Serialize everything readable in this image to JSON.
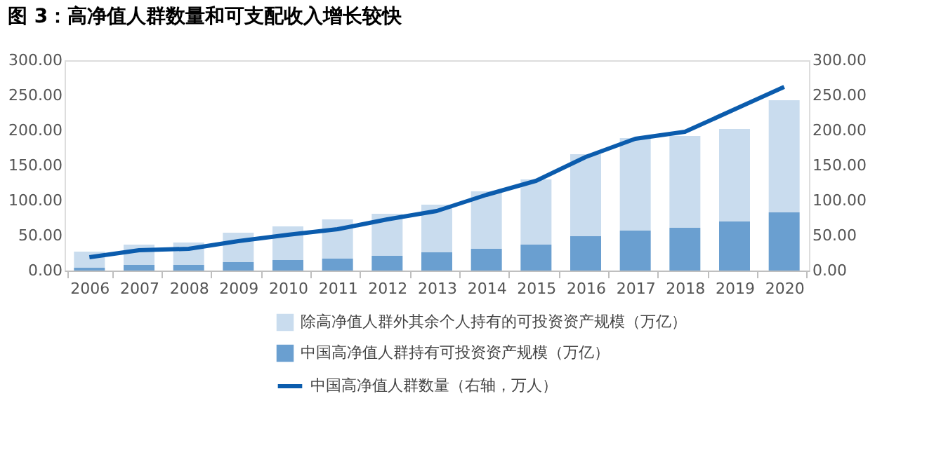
{
  "chart_data": {
    "type": "bar",
    "stacked": true,
    "title": "图 3：高净值人群数量和可支配收入增长较快",
    "categories": [
      "2006",
      "2007",
      "2008",
      "2009",
      "2010",
      "2011",
      "2012",
      "2013",
      "2014",
      "2015",
      "2016",
      "2017",
      "2018",
      "2019",
      "2020"
    ],
    "series": [
      {
        "name": "中国高净值人群持有可投资资产规模（万亿）",
        "type": "bar",
        "color": "#6a9fd0",
        "values": [
          4,
          8,
          8,
          12,
          15,
          17,
          21,
          26,
          31,
          37,
          49,
          57,
          61,
          70,
          83
        ]
      },
      {
        "name": "除高净值人群外其余个人持有的可投资资产规模（万亿）",
        "type": "bar",
        "color": "#c9dcee",
        "values": [
          23,
          29,
          32,
          42,
          48,
          56,
          60,
          68,
          82,
          93,
          117,
          132,
          131,
          132,
          160
        ]
      },
      {
        "name": "中国高净值人群数量（右轴，万人）",
        "type": "line",
        "axis": "y2",
        "color": "#0b5cad",
        "values": [
          19,
          29,
          31,
          42,
          51,
          59,
          73,
          85,
          108,
          128,
          162,
          188,
          198,
          230,
          262
        ]
      }
    ],
    "ylim": [
      0,
      300
    ],
    "yticks": [
      {
        "value": 0,
        "label": "0.00"
      },
      {
        "value": 50,
        "label": "50.00"
      },
      {
        "value": 100,
        "label": "100.00"
      },
      {
        "value": 150,
        "label": "150.00"
      },
      {
        "value": 200,
        "label": "200.00"
      },
      {
        "value": 250,
        "label": "250.00"
      },
      {
        "value": 300,
        "label": "300.00"
      }
    ],
    "y2lim": [
      0,
      300
    ],
    "y2ticks": [
      {
        "value": 0,
        "label": "0.00"
      },
      {
        "value": 50,
        "label": "50.00"
      },
      {
        "value": 100,
        "label": "100.00"
      },
      {
        "value": 150,
        "label": "150.00"
      },
      {
        "value": 200,
        "label": "200.00"
      },
      {
        "value": 250,
        "label": "250.00"
      },
      {
        "value": 300,
        "label": "300.00"
      }
    ],
    "grid": false,
    "legend": "bottom",
    "line_style": "solid",
    "marker": "none"
  }
}
